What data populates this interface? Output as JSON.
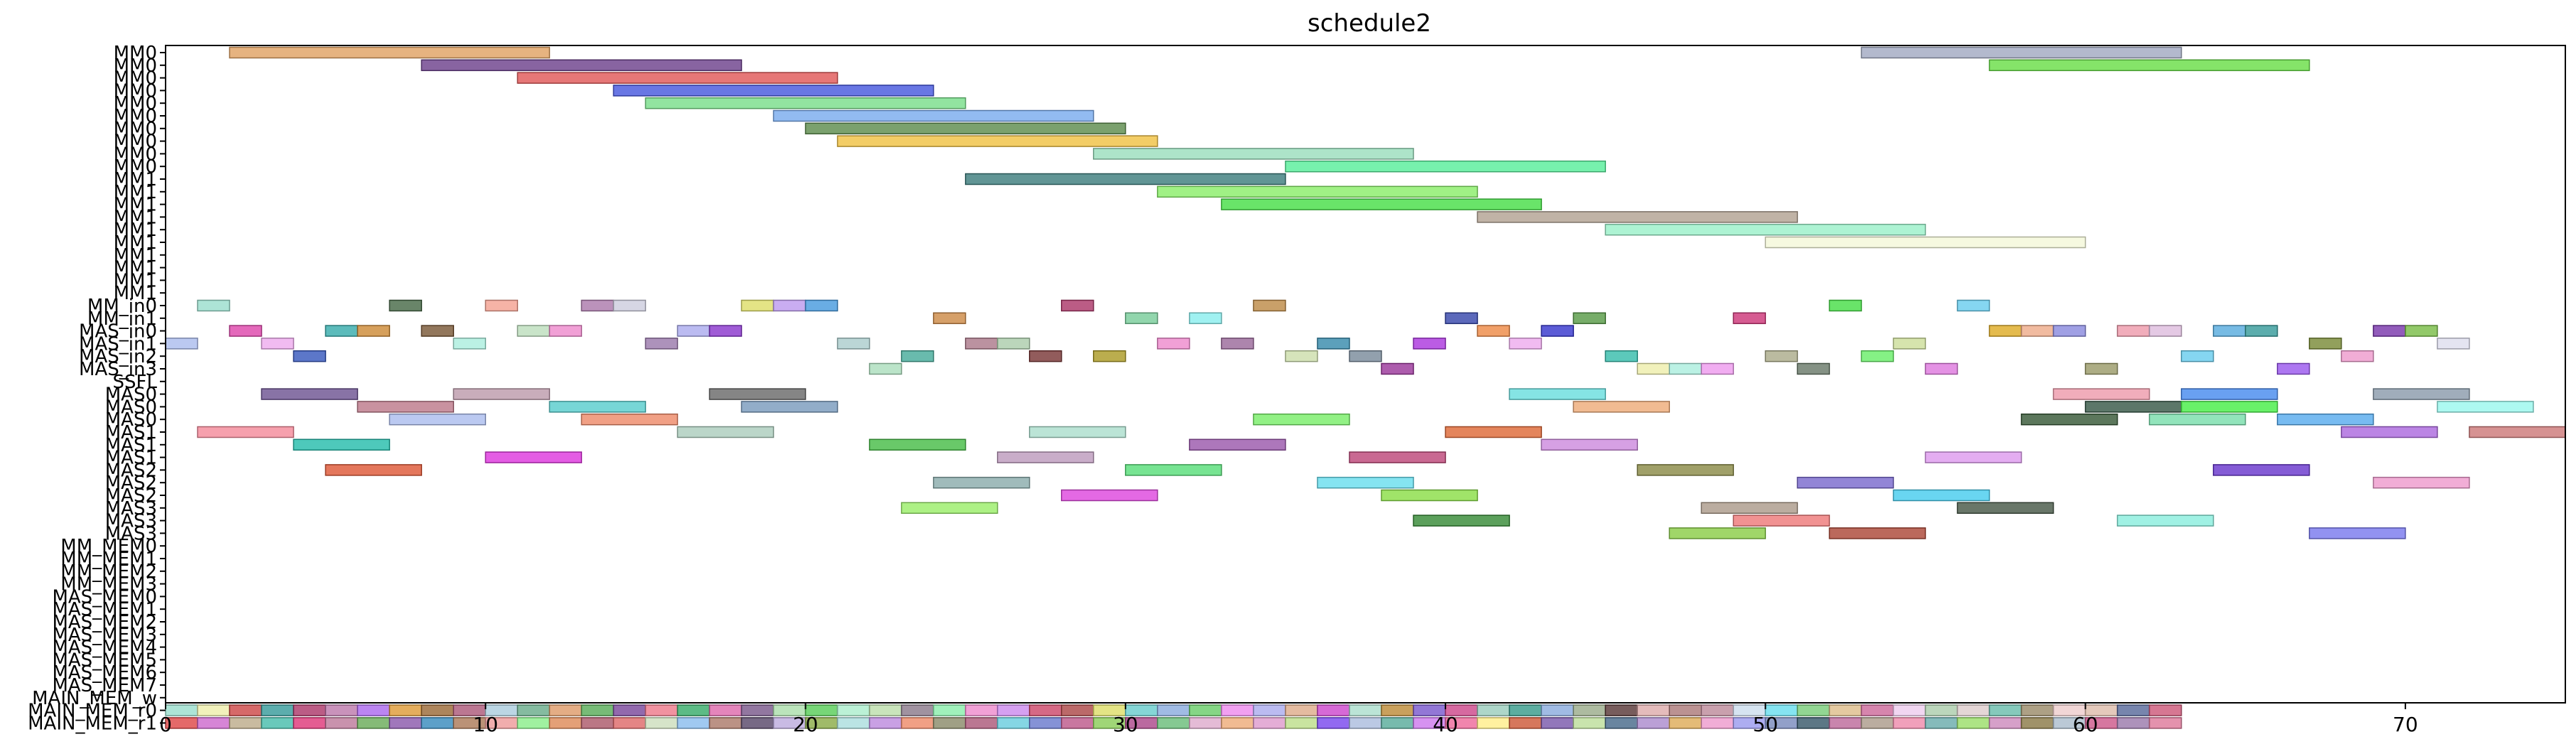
{
  "chart_data": {
    "type": "gantt",
    "title": "schedule2",
    "xlim": [
      0,
      75
    ],
    "x_ticks": [
      0,
      10,
      20,
      30,
      40,
      50,
      60,
      70
    ],
    "grid": false,
    "rows": [
      "MM0",
      "MM0",
      "MM0",
      "MM0",
      "MM0",
      "MM0",
      "MM0",
      "MM0",
      "MM0",
      "MM0",
      "MM1",
      "MM1",
      "MM1",
      "MM1",
      "MM1",
      "MM1",
      "MM1",
      "MM1",
      "MM1",
      "MM1",
      "MM_in0",
      "MM_in1",
      "MAS_in0",
      "MAS_in1",
      "MAS_in2",
      "MAS_in3",
      "SSFL",
      "MAS0",
      "MAS0",
      "MAS0",
      "MAS1",
      "MAS1",
      "MAS1",
      "MAS2",
      "MAS2",
      "MAS2",
      "MAS3",
      "MAS3",
      "MAS3",
      "MM_MEM0",
      "MM_MEM1",
      "MM_MEM2",
      "MM_MEM3",
      "MAS_MEM0",
      "MAS_MEM1",
      "MAS_MEM2",
      "MAS_MEM3",
      "MAS_MEM4",
      "MAS_MEM5",
      "MAS_MEM6",
      "MAS_MEM7",
      "MAIN_MEM_w",
      "MAIN_MEM_r0",
      "MAIN_MEM_r1"
    ],
    "tasks": [
      {
        "row": 0,
        "start": 2,
        "end": 12,
        "color": "#e0a060"
      },
      {
        "row": 0,
        "start": 53,
        "end": 63,
        "color": "#a0a8c0"
      },
      {
        "row": 1,
        "start": 8,
        "end": 18,
        "color": "#6a3d8a"
      },
      {
        "row": 1,
        "start": 57,
        "end": 67,
        "color": "#66dd44"
      },
      {
        "row": 2,
        "start": 11,
        "end": 21,
        "color": "#e05555"
      },
      {
        "row": 3,
        "start": 14,
        "end": 24,
        "color": "#4455dd"
      },
      {
        "row": 4,
        "start": 15,
        "end": 25,
        "color": "#77dd88"
      },
      {
        "row": 5,
        "start": 19,
        "end": 29,
        "color": "#77aaee"
      },
      {
        "row": 6,
        "start": 20,
        "end": 30,
        "color": "#5a8a4a"
      },
      {
        "row": 7,
        "start": 21,
        "end": 31,
        "color": "#f0c040"
      },
      {
        "row": 8,
        "start": 29,
        "end": 39,
        "color": "#99ddbb"
      },
      {
        "row": 9,
        "start": 35,
        "end": 45,
        "color": "#55ee99"
      },
      {
        "row": 10,
        "start": 25,
        "end": 35,
        "color": "#3a7a7a"
      },
      {
        "row": 11,
        "start": 31,
        "end": 41,
        "color": "#88ee66"
      },
      {
        "row": 12,
        "start": 33,
        "end": 43,
        "color": "#44dd44"
      },
      {
        "row": 13,
        "start": 41,
        "end": 51,
        "color": "#b0a090"
      },
      {
        "row": 14,
        "start": 45,
        "end": 55,
        "color": "#99f0c8"
      },
      {
        "row": 15,
        "start": 50,
        "end": 60,
        "color": "#f4f8d8"
      },
      {
        "row": 20,
        "start": 1,
        "end": 2,
        "color": "#99ddcc"
      },
      {
        "row": 20,
        "start": 7,
        "end": 8,
        "color": "#446644"
      },
      {
        "row": 20,
        "start": 10,
        "end": 11,
        "color": "#f4a090"
      },
      {
        "row": 20,
        "start": 13,
        "end": 14,
        "color": "#aa77aa"
      },
      {
        "row": 20,
        "start": 14,
        "end": 15,
        "color": "#ccccdd"
      },
      {
        "row": 20,
        "start": 18,
        "end": 19,
        "color": "#dddd66"
      },
      {
        "row": 20,
        "start": 19,
        "end": 20,
        "color": "#bb99ee"
      },
      {
        "row": 20,
        "start": 20,
        "end": 21,
        "color": "#4499dd"
      },
      {
        "row": 20,
        "start": 28,
        "end": 29,
        "color": "#aa3366"
      },
      {
        "row": 20,
        "start": 34,
        "end": 35,
        "color": "#bb8844"
      },
      {
        "row": 20,
        "start": 52,
        "end": 53,
        "color": "#44dd44"
      },
      {
        "row": 20,
        "start": 56,
        "end": 57,
        "color": "#66ccee"
      },
      {
        "row": 21,
        "start": 24,
        "end": 25,
        "color": "#cc8844"
      },
      {
        "row": 21,
        "start": 30,
        "end": 31,
        "color": "#77cc99"
      },
      {
        "row": 21,
        "start": 32,
        "end": 33,
        "color": "#88eeee"
      },
      {
        "row": 21,
        "start": 40,
        "end": 41,
        "color": "#3344aa"
      },
      {
        "row": 21,
        "start": 44,
        "end": 45,
        "color": "#559944"
      },
      {
        "row": 21,
        "start": 49,
        "end": 50,
        "color": "#cc3377"
      },
      {
        "row": 22,
        "start": 2,
        "end": 3,
        "color": "#dd44aa"
      },
      {
        "row": 22,
        "start": 5,
        "end": 6,
        "color": "#33aaaa"
      },
      {
        "row": 22,
        "start": 6,
        "end": 7,
        "color": "#cc8833"
      },
      {
        "row": 22,
        "start": 8,
        "end": 9,
        "color": "#775533"
      },
      {
        "row": 22,
        "start": 11,
        "end": 12,
        "color": "#bbddbb"
      },
      {
        "row": 22,
        "start": 12,
        "end": 13,
        "color": "#ee88cc"
      },
      {
        "row": 22,
        "start": 16,
        "end": 17,
        "color": "#aaaaee"
      },
      {
        "row": 22,
        "start": 17,
        "end": 18,
        "color": "#8833cc"
      },
      {
        "row": 22,
        "start": 41,
        "end": 42,
        "color": "#ee8844"
      },
      {
        "row": 22,
        "start": 43,
        "end": 44,
        "color": "#3333cc"
      },
      {
        "row": 22,
        "start": 57,
        "end": 58,
        "color": "#ddaa22"
      },
      {
        "row": 22,
        "start": 58,
        "end": 59,
        "color": "#eeaa88"
      },
      {
        "row": 22,
        "start": 59,
        "end": 60,
        "color": "#8888dd"
      },
      {
        "row": 22,
        "start": 61,
        "end": 62,
        "color": "#ee99aa"
      },
      {
        "row": 22,
        "start": 62,
        "end": 63,
        "color": "#ddbbdd"
      },
      {
        "row": 22,
        "start": 64,
        "end": 65,
        "color": "#55aadd"
      },
      {
        "row": 22,
        "start": 65,
        "end": 66,
        "color": "#339999"
      },
      {
        "row": 22,
        "start": 69,
        "end": 70,
        "color": "#7733aa"
      },
      {
        "row": 22,
        "start": 70,
        "end": 71,
        "color": "#77bb44"
      },
      {
        "row": 23,
        "start": 0,
        "end": 1,
        "color": "#aabbee"
      },
      {
        "row": 23,
        "start": 3,
        "end": 4,
        "color": "#eeaaee"
      },
      {
        "row": 23,
        "start": 9,
        "end": 10,
        "color": "#aaeedd"
      },
      {
        "row": 23,
        "start": 15,
        "end": 16,
        "color": "#9977aa"
      },
      {
        "row": 23,
        "start": 21,
        "end": 22,
        "color": "#aacccc"
      },
      {
        "row": 23,
        "start": 25,
        "end": 26,
        "color": "#aa7788"
      },
      {
        "row": 23,
        "start": 26,
        "end": 27,
        "color": "#aaccaa"
      },
      {
        "row": 23,
        "start": 31,
        "end": 32,
        "color": "#ee88cc"
      },
      {
        "row": 23,
        "start": 33,
        "end": 34,
        "color": "#996699"
      },
      {
        "row": 23,
        "start": 36,
        "end": 37,
        "color": "#3388aa"
      },
      {
        "row": 23,
        "start": 39,
        "end": 40,
        "color": "#aa33dd"
      },
      {
        "row": 23,
        "start": 42,
        "end": 43,
        "color": "#eeaaee"
      },
      {
        "row": 23,
        "start": 54,
        "end": 55,
        "color": "#ccdd99"
      },
      {
        "row": 23,
        "start": 67,
        "end": 68,
        "color": "#778833"
      },
      {
        "row": 23,
        "start": 71,
        "end": 72,
        "color": "#ddddee"
      },
      {
        "row": 24,
        "start": 4,
        "end": 5,
        "color": "#3355bb"
      },
      {
        "row": 24,
        "start": 23,
        "end": 24,
        "color": "#44aa99"
      },
      {
        "row": 24,
        "start": 27,
        "end": 28,
        "color": "#773333"
      },
      {
        "row": 24,
        "start": 29,
        "end": 30,
        "color": "#aa9922"
      },
      {
        "row": 24,
        "start": 35,
        "end": 36,
        "color": "#ccddaa"
      },
      {
        "row": 24,
        "start": 37,
        "end": 38,
        "color": "#778899"
      },
      {
        "row": 24,
        "start": 45,
        "end": 46,
        "color": "#33bbaa"
      },
      {
        "row": 24,
        "start": 50,
        "end": 51,
        "color": "#aaaa88"
      },
      {
        "row": 24,
        "start": 53,
        "end": 54,
        "color": "#66ee66"
      },
      {
        "row": 24,
        "start": 63,
        "end": 64,
        "color": "#66ccee"
      },
      {
        "row": 24,
        "start": 68,
        "end": 69,
        "color": "#ee99cc"
      },
      {
        "row": 25,
        "start": 22,
        "end": 23,
        "color": "#aaddbb"
      },
      {
        "row": 25,
        "start": 38,
        "end": 39,
        "color": "#993399"
      },
      {
        "row": 25,
        "start": 46,
        "end": 47,
        "color": "#eeeeaa"
      },
      {
        "row": 25,
        "start": 47,
        "end": 48,
        "color": "#aaeedd"
      },
      {
        "row": 25,
        "start": 48,
        "end": 49,
        "color": "#ee99ee"
      },
      {
        "row": 25,
        "start": 51,
        "end": 52,
        "color": "#667766"
      },
      {
        "row": 25,
        "start": 55,
        "end": 56,
        "color": "#dd77dd"
      },
      {
        "row": 25,
        "start": 60,
        "end": 61,
        "color": "#999966"
      },
      {
        "row": 25,
        "start": 66,
        "end": 67,
        "color": "#9955ee"
      },
      {
        "row": 27,
        "start": 3,
        "end": 6,
        "color": "#6a5090"
      },
      {
        "row": 27,
        "start": 9,
        "end": 12,
        "color": "#bb99aa"
      },
      {
        "row": 27,
        "start": 17,
        "end": 20,
        "color": "#666666"
      },
      {
        "row": 27,
        "start": 42,
        "end": 45,
        "color": "#66dddd"
      },
      {
        "row": 27,
        "start": 59,
        "end": 62,
        "color": "#ee99aa"
      },
      {
        "row": 27,
        "start": 63,
        "end": 66,
        "color": "#4488ee"
      },
      {
        "row": 27,
        "start": 69,
        "end": 72,
        "color": "#8899aa"
      },
      {
        "row": 28,
        "start": 6,
        "end": 9,
        "color": "#bb7788"
      },
      {
        "row": 28,
        "start": 12,
        "end": 15,
        "color": "#55cccc"
      },
      {
        "row": 28,
        "start": 18,
        "end": 21,
        "color": "#7799bb"
      },
      {
        "row": 28,
        "start": 44,
        "end": 47,
        "color": "#eeaa77"
      },
      {
        "row": 28,
        "start": 60,
        "end": 63,
        "color": "#335544"
      },
      {
        "row": 28,
        "start": 63,
        "end": 66,
        "color": "#44ee44"
      },
      {
        "row": 28,
        "start": 71,
        "end": 74,
        "color": "#99f8ee"
      },
      {
        "row": 29,
        "start": 7,
        "end": 10,
        "color": "#aabbee"
      },
      {
        "row": 29,
        "start": 13,
        "end": 16,
        "color": "#ee8866"
      },
      {
        "row": 29,
        "start": 34,
        "end": 37,
        "color": "#77ee66"
      },
      {
        "row": 29,
        "start": 58,
        "end": 61,
        "color": "#335533"
      },
      {
        "row": 29,
        "start": 62,
        "end": 65,
        "color": "#77ddaa"
      },
      {
        "row": 29,
        "start": 66,
        "end": 69,
        "color": "#55aaee"
      },
      {
        "row": 30,
        "start": 1,
        "end": 4,
        "color": "#f48899"
      },
      {
        "row": 30,
        "start": 16,
        "end": 19,
        "color": "#aaccbb"
      },
      {
        "row": 30,
        "start": 27,
        "end": 30,
        "color": "#aaddcc"
      },
      {
        "row": 30,
        "start": 40,
        "end": 43,
        "color": "#dd6633"
      },
      {
        "row": 30,
        "start": 68,
        "end": 71,
        "color": "#aa66dd"
      },
      {
        "row": 30,
        "start": 72,
        "end": 75,
        "color": "#cc7777"
      },
      {
        "row": 31,
        "start": 4,
        "end": 7,
        "color": "#22bbaa"
      },
      {
        "row": 31,
        "start": 22,
        "end": 25,
        "color": "#44bb44"
      },
      {
        "row": 31,
        "start": 32,
        "end": 35,
        "color": "#9955aa"
      },
      {
        "row": 31,
        "start": 43,
        "end": 46,
        "color": "#cc88dd"
      },
      {
        "row": 32,
        "start": 10,
        "end": 13,
        "color": "#dd33dd"
      },
      {
        "row": 32,
        "start": 26,
        "end": 29,
        "color": "#bb99bb"
      },
      {
        "row": 32,
        "start": 37,
        "end": 40,
        "color": "#bb4477"
      },
      {
        "row": 32,
        "start": 55,
        "end": 58,
        "color": "#dd99ee"
      },
      {
        "row": 33,
        "start": 5,
        "end": 8,
        "color": "#dd5533"
      },
      {
        "row": 33,
        "start": 30,
        "end": 33,
        "color": "#55dd77"
      },
      {
        "row": 33,
        "start": 46,
        "end": 49,
        "color": "#888844"
      },
      {
        "row": 33,
        "start": 64,
        "end": 67,
        "color": "#6633cc"
      },
      {
        "row": 34,
        "start": 24,
        "end": 27,
        "color": "#88aaaa"
      },
      {
        "row": 34,
        "start": 36,
        "end": 39,
        "color": "#66ddee"
      },
      {
        "row": 34,
        "start": 51,
        "end": 54,
        "color": "#7766cc"
      },
      {
        "row": 34,
        "start": 69,
        "end": 72,
        "color": "#ee99cc"
      },
      {
        "row": 35,
        "start": 28,
        "end": 31,
        "color": "#dd44dd"
      },
      {
        "row": 35,
        "start": 38,
        "end": 41,
        "color": "#88dd44"
      },
      {
        "row": 35,
        "start": 54,
        "end": 57,
        "color": "#44ccee"
      },
      {
        "row": 36,
        "start": 23,
        "end": 26,
        "color": "#99ee66"
      },
      {
        "row": 36,
        "start": 48,
        "end": 51,
        "color": "#aa9988"
      },
      {
        "row": 36,
        "start": 56,
        "end": 59,
        "color": "#445544"
      },
      {
        "row": 37,
        "start": 39,
        "end": 42,
        "color": "#338833"
      },
      {
        "row": 37,
        "start": 49,
        "end": 52,
        "color": "#ee7777"
      },
      {
        "row": 37,
        "start": 61,
        "end": 64,
        "color": "#88eedd"
      },
      {
        "row": 38,
        "start": 47,
        "end": 50,
        "color": "#88cc44"
      },
      {
        "row": 38,
        "start": 52,
        "end": 55,
        "color": "#aa4433"
      },
      {
        "row": 38,
        "start": 67,
        "end": 70,
        "color": "#7777ee"
      }
    ],
    "mem_w_colors": [
      "#99ddcc",
      "#eeeeaa",
      "#cc4444",
      "#339999",
      "#aa3366",
      "#bb77aa",
      "#aa66ee",
      "#dd9933",
      "#996633",
      "#aa5577",
      "#aaccdd",
      "#66aa88",
      "#dd9966",
      "#55aa55",
      "#774499",
      "#ee7788",
      "#33aa66",
      "#dd66aa",
      "#775588",
      "#aaddaa",
      "#55cc55",
      "#aaeecc",
      "#bbddaa",
      "#887788",
      "#88eeaa",
      "#ee88cc",
      "#cc88ee",
      "#cc4466",
      "#aa4444",
      "#dddd66",
      "#66cccc",
      "#88aadd",
      "#66cc66",
      "#ee88ee",
      "#aaaaee",
      "#ddaa88",
      "#cc44cc",
      "#aaddcc",
      "#bb8833",
      "#7755cc",
      "#cc4488",
      "#99ccbb",
      "#339988",
      "#88aadd",
      "#99aa88",
      "#553333",
      "#ddaaaa",
      "#aa7777",
      "#bb8899",
      "#ccddee",
      "#66ddee",
      "#77cc77",
      "#ddbb88",
      "#cc6699",
      "#eeccee",
      "#aaccaa",
      "#ddcccc",
      "#66bbaa",
      "#998866",
      "#eecccc",
      "#ddbbaa",
      "#556699",
      "#cc5577"
    ],
    "mem_r0_colors": [
      "#dd4444",
      "#cc66cc",
      "#bbaa88",
      "#44bbaa",
      "#dd3377",
      "#bb7799",
      "#66aa55",
      "#8855aa",
      "#3388bb",
      "#aa7755",
      "#ee9999",
      "#88ee88",
      "#dd8855",
      "#aa5566",
      "#dd6666",
      "#ccddbb",
      "#88bbee",
      "#aa7766",
      "#554466",
      "#bbaadd",
      "#88aa44",
      "#aadddd",
      "#bb88dd",
      "#ee8866",
      "#888866",
      "#aa5577",
      "#66ccdd",
      "#6677cc",
      "#bb5588",
      "#88cc55",
      "#aa4488",
      "#66bb77",
      "#ddaacc",
      "#eeaa77",
      "#dd99cc",
      "#bbdd88",
      "#7744ee",
      "#aabbdd",
      "#55aa99",
      "#cc77ee",
      "#ee6699",
      "#ffee88",
      "#cc5533",
      "#7755aa",
      "#bbdd99",
      "#446688",
      "#aa88cc",
      "#ddaa55",
      "#ee99cc",
      "#9999ee",
      "#7788bb",
      "#335566",
      "#bb6699",
      "#aa9988",
      "#ee88aa",
      "#66aaaa",
      "#99dd66",
      "#cc88bb",
      "#887744",
      "#aabbcc",
      "#cc5588",
      "#9977aa",
      "#dd7799"
    ]
  }
}
